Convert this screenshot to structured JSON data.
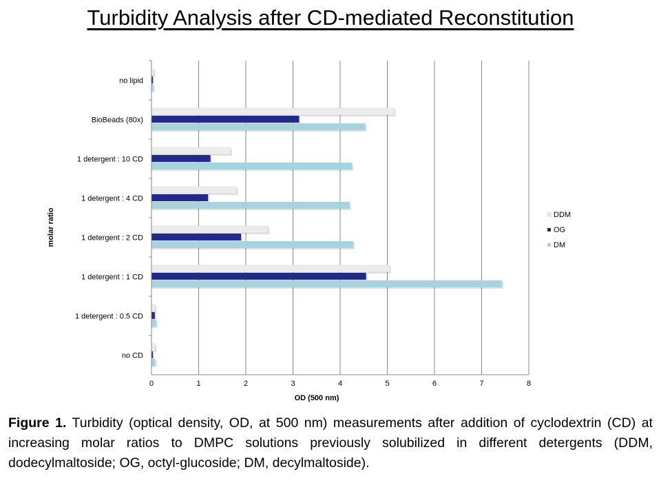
{
  "title": "Turbidity Analysis after CD-mediated Reconstitution",
  "caption": {
    "label": "Figure 1.",
    "text": "Turbidity (optical density, OD, at 500 nm) measurements after addition of cyclodextrin (CD) at increasing molar ratios to DMPC solutions previously solubilized in different detergents (DDM, dodecylmaltoside; OG, octyl-glucoside; DM, decylmaltoside)."
  },
  "chart_data": {
    "type": "bar",
    "orientation": "horizontal",
    "categories": [
      "no lipid",
      "BioBeads (80x)",
      "1 detergent : 10 CD",
      "1 detergent : 4 CD",
      "1 detergent : 2 CD",
      "1 detergent : 1 CD",
      "1 detergent :  0.5 CD",
      "no CD"
    ],
    "series": [
      {
        "name": "DDM",
        "color": "#ececec",
        "values": [
          0.05,
          5.15,
          1.68,
          1.8,
          2.47,
          5.05,
          0.08,
          0.08
        ]
      },
      {
        "name": "OG",
        "color": "#1f2a8c",
        "values": [
          0.03,
          3.13,
          1.25,
          1.2,
          1.9,
          4.55,
          0.07,
          0.03
        ]
      },
      {
        "name": "DM",
        "color": "#a6d3dd",
        "values": [
          0.04,
          4.53,
          4.25,
          4.2,
          4.28,
          7.43,
          0.1,
          0.08
        ]
      }
    ],
    "xlabel": "OD (500 nm)",
    "ylabel": "molar ratio",
    "xlim": [
      0,
      8
    ],
    "xticks": [
      "0",
      "1",
      "2",
      "3",
      "4",
      "5",
      "6",
      "7",
      "8"
    ],
    "grid": "vertical",
    "legend": "right"
  }
}
